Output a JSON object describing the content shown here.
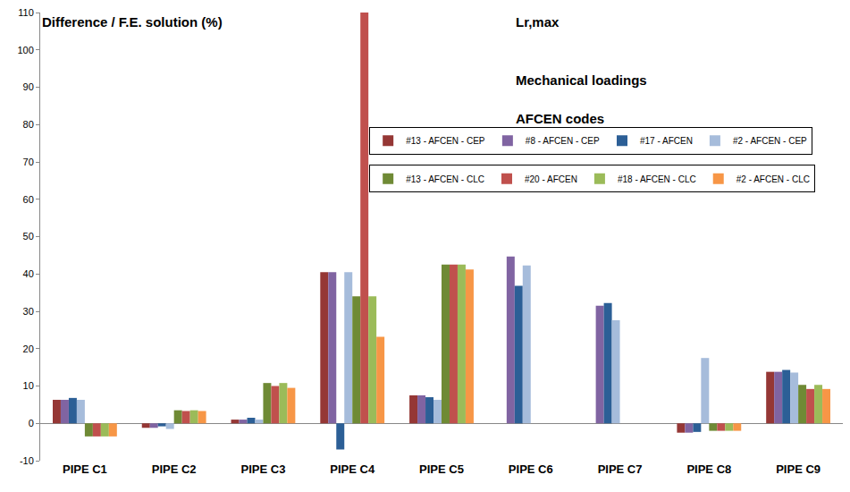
{
  "chart_data": {
    "type": "bar",
    "y_label": "Difference / F.E. solution (%)",
    "annotations": [
      "Lr,max",
      "Mechanical loadings",
      "AFCEN codes"
    ],
    "categories": [
      "PIPE C1",
      "PIPE C2",
      "PIPE C3",
      "PIPE C4",
      "PIPE C5",
      "PIPE C6",
      "PIPE C7",
      "PIPE C8",
      "PIPE C9"
    ],
    "series": [
      {
        "name": "#13 - AFCEN - CEP",
        "color": "#953735",
        "values": [
          6.3,
          -1.2,
          1.0,
          40.5,
          7.5,
          null,
          null,
          -2.5,
          13.8
        ]
      },
      {
        "name": "#8 - AFCEN - CEP",
        "color": "#8064a2",
        "values": [
          6.3,
          -1.2,
          1.0,
          40.5,
          7.5,
          44.7,
          31.5,
          -2.5,
          13.8
        ]
      },
      {
        "name": "#17 - AFCEN",
        "color": "#2c5f96",
        "values": [
          6.8,
          -0.8,
          1.5,
          -7.0,
          7.0,
          36.8,
          32.2,
          -2.3,
          14.3
        ]
      },
      {
        "name": "#2 - AFCEN - CEP",
        "color": "#a6bcdb",
        "values": [
          6.3,
          -1.5,
          1.0,
          40.5,
          6.3,
          42.3,
          27.6,
          17.5,
          13.6
        ]
      },
      {
        "name": "#13 - AFCEN - CLC",
        "color": "#6f8a35",
        "values": [
          -3.5,
          3.5,
          10.8,
          34.0,
          42.5,
          null,
          null,
          -2.0,
          10.3
        ]
      },
      {
        "name": "#20 - AFCEN",
        "color": "#c0504d",
        "values": [
          -3.5,
          3.3,
          10.0,
          110,
          42.5,
          null,
          null,
          -2.0,
          9.2
        ]
      },
      {
        "name": "#18 - AFCEN - CLC",
        "color": "#9bbb59",
        "values": [
          -3.5,
          3.5,
          10.8,
          34.0,
          42.5,
          null,
          null,
          -2.0,
          10.3
        ]
      },
      {
        "name": "#2 - AFCEN - CLC",
        "color": "#f79646",
        "values": [
          -3.5,
          3.3,
          9.5,
          23.2,
          41.2,
          null,
          null,
          -2.0,
          9.2
        ]
      }
    ],
    "ylim": [
      -10,
      110
    ],
    "yticks": [
      -10,
      0,
      10,
      20,
      30,
      40,
      50,
      60,
      70,
      80,
      90,
      100,
      110
    ],
    "grid": false,
    "legend": "top right"
  }
}
